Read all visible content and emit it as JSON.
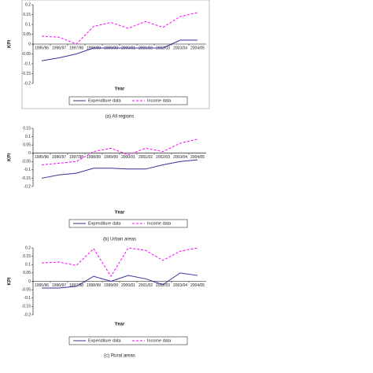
{
  "chart_data": [
    {
      "type": "line",
      "x_label": "Year",
      "y_label": "KPI",
      "caption": "(a) All regions",
      "legend": "bottom",
      "grid": false,
      "categories": [
        "1995/96",
        "1996/97",
        "1997/98",
        "1998/99",
        "1999/00",
        "2000/01",
        "2001/02",
        "2002/03",
        "2003/04",
        "2004/05"
      ],
      "ylim": [
        -0.2,
        0.2
      ],
      "yticks": [
        -0.2,
        -0.15,
        -0.1,
        -0.05,
        0,
        0.05,
        0.1,
        0.15,
        0.2
      ],
      "series": [
        {
          "name": "Expenditure data",
          "color": "#333399",
          "dashed": false,
          "values": [
            -0.085,
            -0.07,
            -0.05,
            -0.02,
            -0.02,
            -0.02,
            -0.02,
            -0.02,
            0.02,
            0.02
          ]
        },
        {
          "name": "Income data",
          "color": "#ff00ff",
          "dashed": true,
          "values": [
            0.04,
            0.035,
            0.0,
            0.09,
            0.11,
            0.08,
            0.115,
            0.085,
            0.14,
            0.16
          ]
        }
      ]
    },
    {
      "type": "line",
      "x_label": "Year",
      "y_label": "KPI",
      "caption": "(b) Urban areas",
      "legend": "bottom",
      "grid": false,
      "categories": [
        "1995/96",
        "1996/97",
        "1997/98",
        "1998/99",
        "1999/00",
        "2000/01",
        "2001/02",
        "2002/03",
        "2003/04",
        "2004/05"
      ],
      "ylim": [
        -0.2,
        0.15
      ],
      "yticks": [
        -0.2,
        -0.15,
        -0.1,
        -0.05,
        0,
        0.05,
        0.1,
        0.15
      ],
      "series": [
        {
          "name": "Expenditure data",
          "color": "#333399",
          "dashed": false,
          "values": [
            -0.15,
            -0.13,
            -0.12,
            -0.09,
            -0.09,
            -0.095,
            -0.095,
            -0.07,
            -0.05,
            -0.04
          ]
        },
        {
          "name": "Income data",
          "color": "#ff00ff",
          "dashed": true,
          "values": [
            -0.07,
            -0.06,
            -0.05,
            0.01,
            0.03,
            -0.01,
            0.03,
            0.01,
            0.06,
            0.085
          ]
        }
      ]
    },
    {
      "type": "line",
      "x_label": "Year",
      "y_label": "KPI",
      "caption": "(c) Rural areas",
      "legend": "bottom",
      "grid": false,
      "categories": [
        "1995/96",
        "1996/97",
        "1997/98",
        "1998/99",
        "1999/00",
        "2000/01",
        "2001/02",
        "2002/03",
        "2003/04",
        "2004/05"
      ],
      "ylim": [
        -0.2,
        0.2
      ],
      "yticks": [
        -0.2,
        -0.15,
        -0.1,
        -0.05,
        0,
        0.05,
        0.1,
        0.15,
        0.2
      ],
      "series": [
        {
          "name": "Expenditure data",
          "color": "#333399",
          "dashed": false,
          "values": [
            -0.04,
            -0.04,
            -0.03,
            0.03,
            0.0,
            0.035,
            0.015,
            -0.02,
            0.05,
            0.035
          ]
        },
        {
          "name": "Income data",
          "color": "#ff00ff",
          "dashed": true,
          "values": [
            0.11,
            0.115,
            0.095,
            0.195,
            0.03,
            0.2,
            0.185,
            0.125,
            0.18,
            0.2
          ]
        }
      ]
    }
  ]
}
